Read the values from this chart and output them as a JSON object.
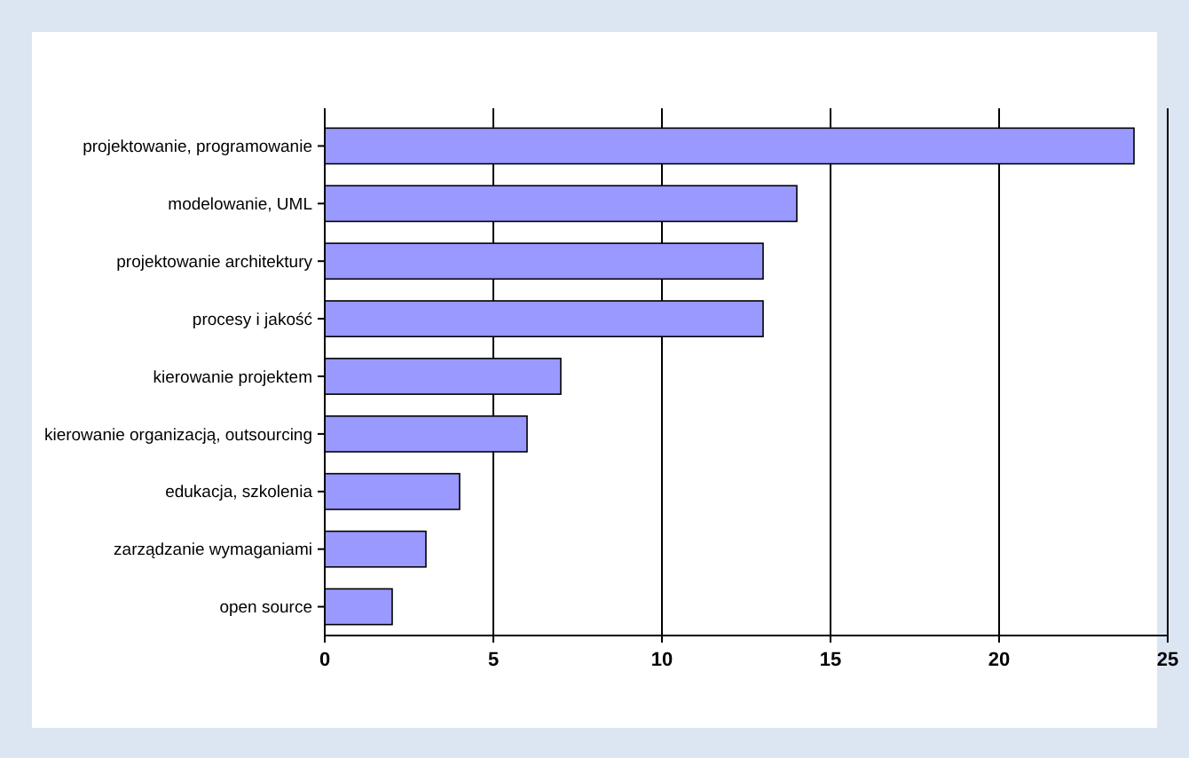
{
  "chart_data": {
    "type": "bar",
    "orientation": "horizontal",
    "categories": [
      "projektowanie, programowanie",
      "modelowanie, UML",
      "projektowanie architektury",
      "procesy i jakość",
      "kierowanie projektem",
      "kierowanie organizacją, outsourcing",
      "edukacja, szkolenia",
      "zarządzanie wymaganiami",
      "open source"
    ],
    "values": [
      24,
      14,
      13,
      13,
      7,
      6,
      4,
      3,
      2
    ],
    "color": "#9999ff",
    "xlim": [
      0,
      25
    ],
    "xticks": [
      0,
      5,
      10,
      15,
      20,
      25
    ],
    "grid": "x"
  }
}
